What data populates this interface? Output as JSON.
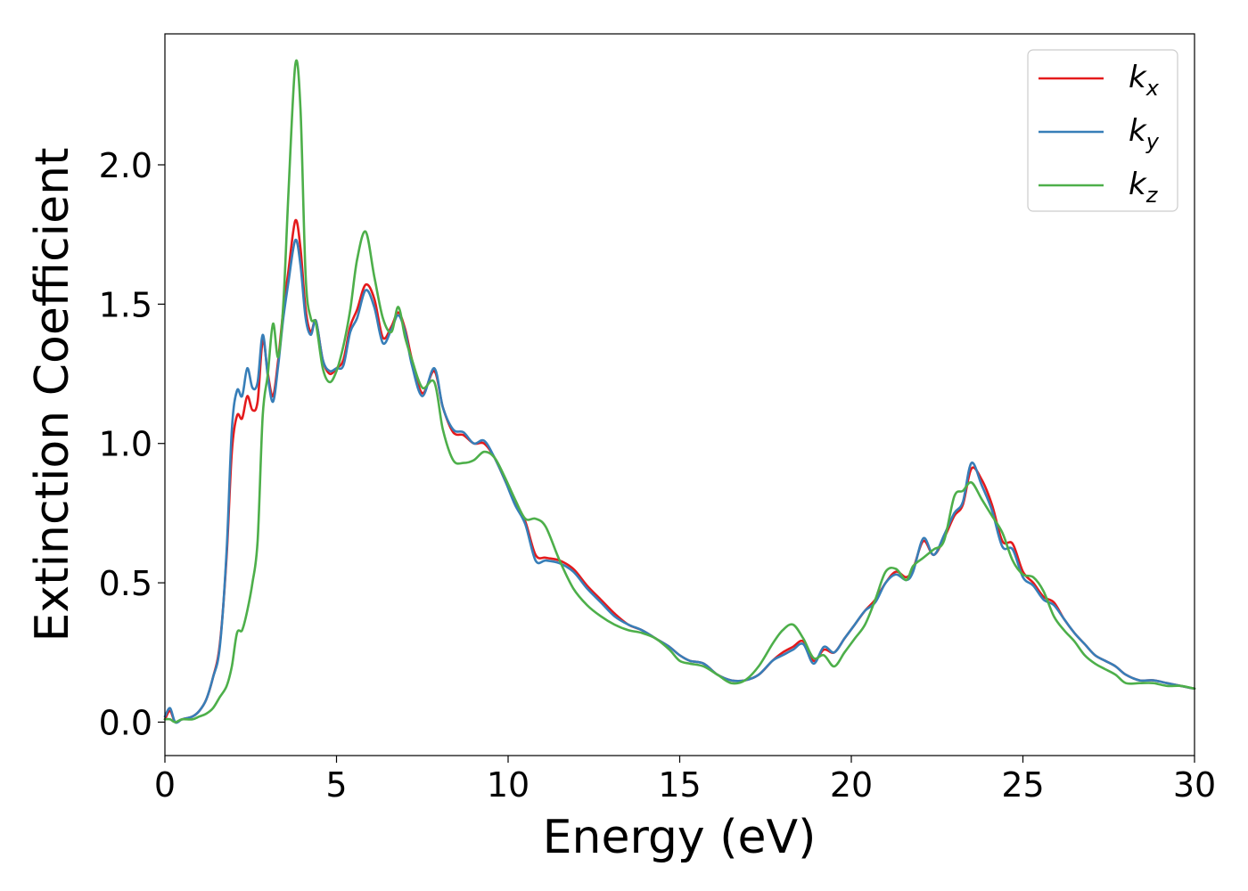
{
  "chart_data": {
    "type": "line",
    "title": "",
    "xlabel": "Energy (eV)",
    "ylabel": "Extinction Coefficient",
    "xlim": [
      0,
      30
    ],
    "ylim": [
      -0.12,
      2.47
    ],
    "xticks": [
      0,
      5,
      10,
      15,
      20,
      25,
      30
    ],
    "xtick_labels": [
      "0",
      "5",
      "10",
      "15",
      "20",
      "25",
      "30"
    ],
    "yticks": [
      0.0,
      0.5,
      1.0,
      1.5,
      2.0
    ],
    "ytick_labels": [
      "0.0",
      "0.5",
      "1.0",
      "1.5",
      "2.0"
    ],
    "grid": false,
    "legend_position": "top-right",
    "series": [
      {
        "name": "k",
        "subscript": "x",
        "color": "#e41a1c",
        "x": [
          0,
          0.15,
          0.3,
          0.5,
          0.8,
          1.0,
          1.2,
          1.4,
          1.6,
          1.8,
          1.95,
          2.1,
          2.25,
          2.4,
          2.55,
          2.7,
          2.85,
          3.0,
          3.15,
          3.3,
          3.45,
          3.6,
          3.8,
          3.95,
          4.1,
          4.25,
          4.4,
          4.6,
          4.8,
          5.0,
          5.2,
          5.4,
          5.6,
          5.85,
          6.1,
          6.35,
          6.6,
          6.8,
          7.0,
          7.2,
          7.5,
          7.85,
          8.1,
          8.4,
          8.7,
          9.0,
          9.3,
          9.6,
          9.9,
          10.2,
          10.5,
          10.8,
          11.1,
          11.5,
          11.9,
          12.3,
          12.7,
          13.1,
          13.5,
          13.9,
          14.3,
          14.7,
          15.0,
          15.3,
          15.7,
          16.1,
          16.5,
          16.9,
          17.3,
          17.7,
          18.0,
          18.3,
          18.6,
          18.9,
          19.2,
          19.5,
          19.8,
          20.1,
          20.4,
          20.7,
          21.0,
          21.3,
          21.6,
          21.8,
          22.1,
          22.4,
          22.7,
          23.0,
          23.25,
          23.5,
          23.8,
          24.1,
          24.4,
          24.7,
          25.0,
          25.3,
          25.6,
          25.9,
          26.2,
          26.5,
          26.8,
          27.1,
          27.4,
          27.7,
          28.0,
          28.4,
          28.8,
          29.2,
          29.6,
          30.0
        ],
        "y": [
          0.01,
          0.04,
          0.0,
          0.01,
          0.02,
          0.04,
          0.08,
          0.16,
          0.28,
          0.6,
          0.97,
          1.1,
          1.09,
          1.17,
          1.12,
          1.15,
          1.37,
          1.25,
          1.17,
          1.3,
          1.48,
          1.62,
          1.8,
          1.7,
          1.48,
          1.4,
          1.44,
          1.3,
          1.25,
          1.27,
          1.3,
          1.42,
          1.48,
          1.57,
          1.52,
          1.38,
          1.42,
          1.47,
          1.41,
          1.3,
          1.18,
          1.26,
          1.13,
          1.04,
          1.03,
          1.0,
          1.0,
          0.95,
          0.87,
          0.79,
          0.72,
          0.6,
          0.59,
          0.58,
          0.55,
          0.49,
          0.44,
          0.39,
          0.35,
          0.33,
          0.3,
          0.27,
          0.24,
          0.22,
          0.21,
          0.17,
          0.15,
          0.15,
          0.17,
          0.22,
          0.25,
          0.27,
          0.29,
          0.22,
          0.26,
          0.25,
          0.3,
          0.35,
          0.4,
          0.44,
          0.5,
          0.54,
          0.52,
          0.55,
          0.65,
          0.6,
          0.66,
          0.74,
          0.78,
          0.91,
          0.87,
          0.78,
          0.65,
          0.64,
          0.54,
          0.5,
          0.45,
          0.43,
          0.37,
          0.32,
          0.28,
          0.24,
          0.22,
          0.2,
          0.17,
          0.15,
          0.15,
          0.14,
          0.13,
          0.12
        ]
      },
      {
        "name": "k",
        "subscript": "y",
        "color": "#377eb8",
        "x": [
          0,
          0.15,
          0.3,
          0.5,
          0.8,
          1.0,
          1.2,
          1.4,
          1.6,
          1.8,
          1.95,
          2.1,
          2.25,
          2.4,
          2.55,
          2.7,
          2.85,
          3.0,
          3.15,
          3.3,
          3.45,
          3.6,
          3.8,
          3.95,
          4.1,
          4.25,
          4.4,
          4.6,
          4.8,
          5.0,
          5.2,
          5.4,
          5.6,
          5.85,
          6.1,
          6.35,
          6.6,
          6.8,
          7.0,
          7.2,
          7.5,
          7.85,
          8.1,
          8.4,
          8.7,
          9.0,
          9.3,
          9.6,
          9.9,
          10.2,
          10.5,
          10.8,
          11.1,
          11.5,
          11.9,
          12.3,
          12.7,
          13.1,
          13.5,
          13.9,
          14.3,
          14.7,
          15.0,
          15.3,
          15.7,
          16.1,
          16.5,
          16.9,
          17.3,
          17.7,
          18.0,
          18.3,
          18.6,
          18.9,
          19.2,
          19.5,
          19.8,
          20.1,
          20.4,
          20.7,
          21.0,
          21.3,
          21.6,
          21.8,
          22.1,
          22.4,
          22.7,
          23.0,
          23.25,
          23.5,
          23.8,
          24.1,
          24.4,
          24.7,
          25.0,
          25.3,
          25.6,
          25.9,
          26.2,
          26.5,
          26.8,
          27.1,
          27.4,
          27.7,
          28.0,
          28.4,
          28.8,
          29.2,
          29.6,
          30.0
        ],
        "y": [
          0.02,
          0.05,
          0.0,
          0.01,
          0.02,
          0.04,
          0.08,
          0.16,
          0.27,
          0.62,
          1.05,
          1.19,
          1.17,
          1.27,
          1.2,
          1.22,
          1.39,
          1.24,
          1.15,
          1.28,
          1.45,
          1.58,
          1.73,
          1.64,
          1.45,
          1.39,
          1.44,
          1.3,
          1.26,
          1.27,
          1.28,
          1.4,
          1.45,
          1.55,
          1.49,
          1.36,
          1.41,
          1.46,
          1.4,
          1.28,
          1.17,
          1.27,
          1.13,
          1.05,
          1.04,
          1.0,
          1.01,
          0.95,
          0.87,
          0.78,
          0.71,
          0.58,
          0.58,
          0.57,
          0.54,
          0.48,
          0.43,
          0.38,
          0.35,
          0.33,
          0.3,
          0.27,
          0.24,
          0.22,
          0.21,
          0.17,
          0.15,
          0.15,
          0.17,
          0.22,
          0.24,
          0.26,
          0.28,
          0.21,
          0.27,
          0.25,
          0.3,
          0.35,
          0.4,
          0.43,
          0.5,
          0.53,
          0.51,
          0.54,
          0.66,
          0.6,
          0.67,
          0.75,
          0.79,
          0.93,
          0.85,
          0.76,
          0.63,
          0.62,
          0.52,
          0.49,
          0.44,
          0.42,
          0.37,
          0.32,
          0.28,
          0.24,
          0.22,
          0.2,
          0.17,
          0.15,
          0.15,
          0.14,
          0.13,
          0.12
        ]
      },
      {
        "name": "k",
        "subscript": "z",
        "color": "#4daf4a",
        "x": [
          0,
          0.15,
          0.3,
          0.5,
          0.8,
          1.0,
          1.2,
          1.4,
          1.6,
          1.8,
          1.95,
          2.1,
          2.25,
          2.4,
          2.55,
          2.7,
          2.85,
          3.0,
          3.15,
          3.3,
          3.45,
          3.6,
          3.8,
          3.95,
          4.1,
          4.25,
          4.4,
          4.6,
          4.8,
          5.0,
          5.2,
          5.4,
          5.6,
          5.85,
          6.1,
          6.35,
          6.6,
          6.8,
          7.0,
          7.2,
          7.5,
          7.85,
          8.1,
          8.4,
          8.7,
          9.0,
          9.3,
          9.6,
          9.9,
          10.2,
          10.5,
          10.8,
          11.1,
          11.5,
          11.9,
          12.3,
          12.7,
          13.1,
          13.5,
          13.9,
          14.3,
          14.7,
          15.0,
          15.3,
          15.7,
          16.1,
          16.5,
          16.9,
          17.3,
          17.7,
          18.0,
          18.3,
          18.6,
          18.9,
          19.2,
          19.5,
          19.8,
          20.1,
          20.4,
          20.7,
          21.0,
          21.3,
          21.6,
          21.8,
          22.1,
          22.4,
          22.7,
          23.0,
          23.25,
          23.5,
          23.8,
          24.1,
          24.4,
          24.7,
          25.0,
          25.3,
          25.6,
          25.9,
          26.2,
          26.5,
          26.8,
          27.1,
          27.4,
          27.7,
          28.0,
          28.4,
          28.8,
          29.2,
          29.6,
          30.0
        ],
        "y": [
          0.01,
          0.01,
          0.0,
          0.01,
          0.01,
          0.02,
          0.03,
          0.05,
          0.09,
          0.13,
          0.2,
          0.32,
          0.33,
          0.4,
          0.5,
          0.65,
          1.1,
          1.25,
          1.43,
          1.31,
          1.5,
          1.9,
          2.36,
          2.2,
          1.6,
          1.45,
          1.43,
          1.27,
          1.22,
          1.26,
          1.35,
          1.48,
          1.66,
          1.76,
          1.6,
          1.45,
          1.4,
          1.49,
          1.38,
          1.3,
          1.2,
          1.22,
          1.05,
          0.94,
          0.93,
          0.94,
          0.97,
          0.95,
          0.88,
          0.8,
          0.73,
          0.73,
          0.7,
          0.58,
          0.48,
          0.42,
          0.38,
          0.35,
          0.33,
          0.32,
          0.3,
          0.26,
          0.22,
          0.21,
          0.2,
          0.17,
          0.14,
          0.15,
          0.2,
          0.28,
          0.33,
          0.35,
          0.3,
          0.23,
          0.24,
          0.2,
          0.25,
          0.3,
          0.35,
          0.44,
          0.54,
          0.55,
          0.51,
          0.56,
          0.59,
          0.62,
          0.65,
          0.81,
          0.83,
          0.86,
          0.8,
          0.74,
          0.68,
          0.58,
          0.53,
          0.52,
          0.47,
          0.38,
          0.33,
          0.29,
          0.24,
          0.21,
          0.19,
          0.17,
          0.14,
          0.14,
          0.14,
          0.13,
          0.13,
          0.12
        ]
      }
    ]
  }
}
